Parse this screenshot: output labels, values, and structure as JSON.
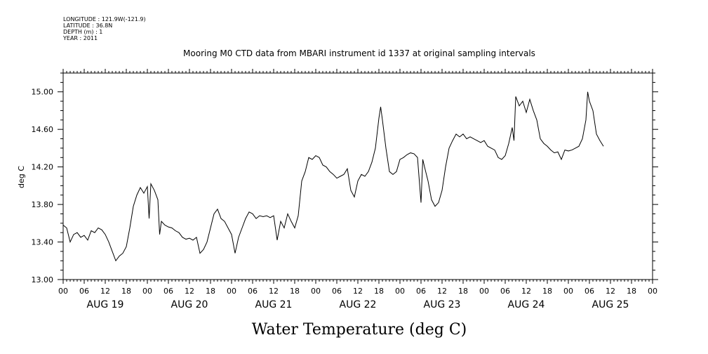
{
  "meta": {
    "longitude": "LONGITUDE : 121.9W(-121.9)",
    "latitude": "LATITUDE : 36.8N",
    "depth": "DEPTH (m) : 1",
    "year": "YEAR : 2011"
  },
  "chart_data": {
    "type": "line",
    "title": "Mooring M0 CTD data from MBARI instrument id 1337 at original sampling intervals",
    "ylabel": "deg C",
    "xlabel": "Water Temperature (deg C)",
    "ylim": [
      13.0,
      15.2
    ],
    "yticks": [
      "13.00",
      "13.40",
      "13.80",
      "14.20",
      "14.60",
      "15.00"
    ],
    "hour_ticks": [
      "00",
      "06",
      "12",
      "18",
      "00",
      "06",
      "12",
      "18",
      "00",
      "06",
      "12",
      "18",
      "00",
      "06",
      "12",
      "18",
      "00",
      "06",
      "12",
      "18",
      "00",
      "06",
      "12",
      "18",
      "00",
      "06",
      "12",
      "18",
      "00"
    ],
    "day_labels": [
      "AUG 19",
      "AUG 20",
      "AUG 21",
      "AUG 22",
      "AUG 23",
      "AUG 24",
      "AUG 25"
    ],
    "x_unit": "hours since Aug 19 00:00",
    "xlim": [
      0,
      168
    ],
    "grid": false,
    "series": [
      {
        "name": "Water Temperature",
        "points": [
          [
            0,
            13.58
          ],
          [
            1,
            13.55
          ],
          [
            2,
            13.4
          ],
          [
            3,
            13.48
          ],
          [
            4,
            13.5
          ],
          [
            5,
            13.45
          ],
          [
            6,
            13.47
          ],
          [
            7,
            13.42
          ],
          [
            8,
            13.52
          ],
          [
            9,
            13.5
          ],
          [
            10,
            13.55
          ],
          [
            11,
            13.53
          ],
          [
            12,
            13.48
          ],
          [
            13,
            13.4
          ],
          [
            14,
            13.3
          ],
          [
            15,
            13.2
          ],
          [
            16,
            13.25
          ],
          [
            17,
            13.28
          ],
          [
            18,
            13.35
          ],
          [
            19,
            13.55
          ],
          [
            20,
            13.78
          ],
          [
            21,
            13.9
          ],
          [
            22,
            13.98
          ],
          [
            23,
            13.92
          ],
          [
            24,
            13.99
          ],
          [
            24.5,
            13.65
          ],
          [
            25,
            14.02
          ],
          [
            26,
            13.95
          ],
          [
            27,
            13.85
          ],
          [
            27.5,
            13.48
          ],
          [
            28,
            13.62
          ],
          [
            29,
            13.58
          ],
          [
            30,
            13.56
          ],
          [
            31,
            13.55
          ],
          [
            32,
            13.52
          ],
          [
            33,
            13.5
          ],
          [
            34,
            13.45
          ],
          [
            35,
            13.43
          ],
          [
            36,
            13.44
          ],
          [
            37,
            13.42
          ],
          [
            38,
            13.45
          ],
          [
            39,
            13.28
          ],
          [
            40,
            13.32
          ],
          [
            41,
            13.4
          ],
          [
            42,
            13.55
          ],
          [
            43,
            13.7
          ],
          [
            44,
            13.75
          ],
          [
            45,
            13.65
          ],
          [
            46,
            13.62
          ],
          [
            47,
            13.55
          ],
          [
            48,
            13.48
          ],
          [
            49,
            13.28
          ],
          [
            50,
            13.45
          ],
          [
            51,
            13.55
          ],
          [
            52,
            13.65
          ],
          [
            53,
            13.72
          ],
          [
            54,
            13.7
          ],
          [
            55,
            13.65
          ],
          [
            56,
            13.68
          ],
          [
            57,
            13.67
          ],
          [
            58,
            13.68
          ],
          [
            59,
            13.66
          ],
          [
            60,
            13.68
          ],
          [
            61,
            13.42
          ],
          [
            62,
            13.62
          ],
          [
            63,
            13.55
          ],
          [
            64,
            13.7
          ],
          [
            65,
            13.62
          ],
          [
            66,
            13.55
          ],
          [
            67,
            13.68
          ],
          [
            68,
            14.05
          ],
          [
            69,
            14.15
          ],
          [
            70,
            14.3
          ],
          [
            71,
            14.28
          ],
          [
            72,
            14.32
          ],
          [
            73,
            14.3
          ],
          [
            74,
            14.22
          ],
          [
            75,
            14.2
          ],
          [
            76,
            14.15
          ],
          [
            77,
            14.12
          ],
          [
            78,
            14.08
          ],
          [
            79,
            14.1
          ],
          [
            80,
            14.12
          ],
          [
            81,
            14.18
          ],
          [
            82,
            13.95
          ],
          [
            83,
            13.88
          ],
          [
            84,
            14.05
          ],
          [
            85,
            14.12
          ],
          [
            86,
            14.1
          ],
          [
            87,
            14.15
          ],
          [
            88,
            14.25
          ],
          [
            89,
            14.4
          ],
          [
            90,
            14.72
          ],
          [
            90.5,
            14.84
          ],
          [
            91,
            14.7
          ],
          [
            92,
            14.4
          ],
          [
            93,
            14.15
          ],
          [
            94,
            14.12
          ],
          [
            95,
            14.15
          ],
          [
            96,
            14.28
          ],
          [
            97,
            14.3
          ],
          [
            98,
            14.33
          ],
          [
            99,
            14.35
          ],
          [
            100,
            14.34
          ],
          [
            101,
            14.3
          ],
          [
            102,
            13.82
          ],
          [
            102.5,
            14.28
          ],
          [
            103,
            14.2
          ],
          [
            104,
            14.05
          ],
          [
            105,
            13.85
          ],
          [
            106,
            13.78
          ],
          [
            107,
            13.82
          ],
          [
            108,
            13.95
          ],
          [
            109,
            14.2
          ],
          [
            110,
            14.4
          ],
          [
            111,
            14.48
          ],
          [
            112,
            14.55
          ],
          [
            113,
            14.52
          ],
          [
            114,
            14.55
          ],
          [
            115,
            14.5
          ],
          [
            116,
            14.52
          ],
          [
            117,
            14.5
          ],
          [
            118,
            14.48
          ],
          [
            119,
            14.46
          ],
          [
            120,
            14.48
          ],
          [
            121,
            14.42
          ],
          [
            122,
            14.4
          ],
          [
            123,
            14.38
          ],
          [
            124,
            14.3
          ],
          [
            125,
            14.28
          ],
          [
            126,
            14.32
          ],
          [
            127,
            14.45
          ],
          [
            128,
            14.62
          ],
          [
            128.5,
            14.48
          ],
          [
            129,
            14.95
          ],
          [
            130,
            14.85
          ],
          [
            131,
            14.9
          ],
          [
            132,
            14.78
          ],
          [
            133,
            14.92
          ],
          [
            134,
            14.8
          ],
          [
            135,
            14.7
          ],
          [
            136,
            14.5
          ],
          [
            137,
            14.45
          ],
          [
            138,
            14.42
          ],
          [
            139,
            14.38
          ],
          [
            140,
            14.35
          ],
          [
            141,
            14.36
          ],
          [
            142,
            14.28
          ],
          [
            143,
            14.38
          ],
          [
            144,
            14.37
          ],
          [
            145,
            14.38
          ],
          [
            146,
            14.4
          ],
          [
            147,
            14.42
          ],
          [
            148,
            14.5
          ],
          [
            149,
            14.7
          ],
          [
            149.5,
            15.0
          ],
          [
            150,
            14.9
          ],
          [
            151,
            14.8
          ],
          [
            152,
            14.55
          ],
          [
            153,
            14.48
          ],
          [
            154,
            14.42
          ]
        ]
      }
    ]
  }
}
